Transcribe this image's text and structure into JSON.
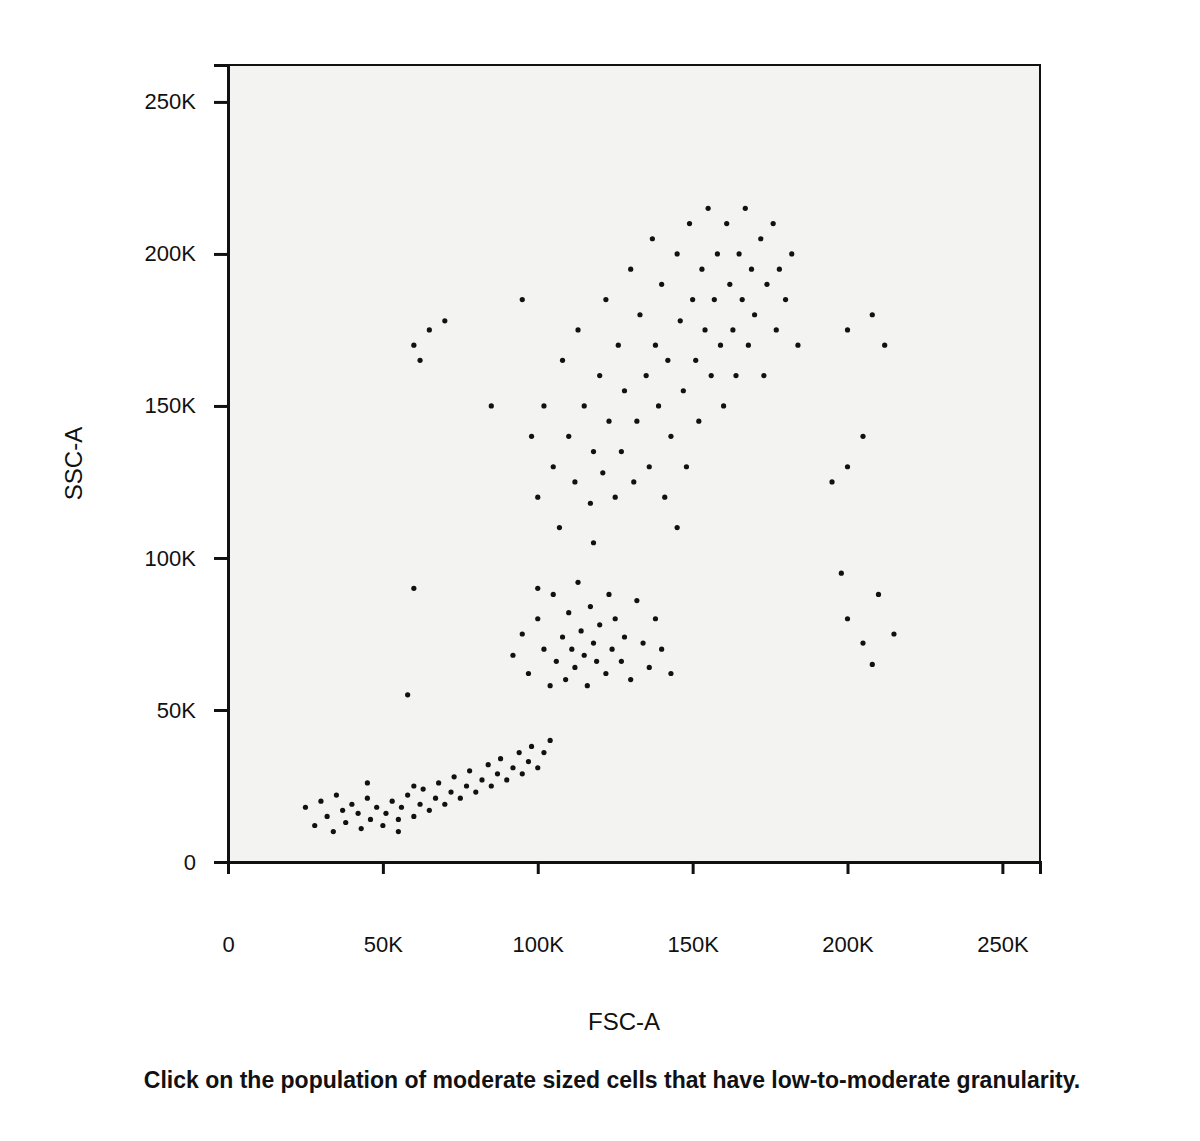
{
  "chart_data": {
    "type": "scatter",
    "x_label": "FSC-A",
    "y_label": "SSC-A",
    "annotations": [
      "Click on the population of moderate sized cells that have low-to-moderate granularity."
    ],
    "color": "#111111",
    "marker": "circle",
    "grid": false,
    "xlim": [
      0,
      262144
    ],
    "ylim": [
      0,
      262144
    ],
    "xticks": [
      0,
      {
        "value": 50000,
        "label": "50K"
      },
      {
        "value": 100000,
        "label": "100K"
      },
      {
        "value": 150000,
        "label": "150K"
      },
      {
        "value": 200000,
        "label": "200K"
      },
      {
        "value": 250000,
        "label": "250K"
      }
    ],
    "yticks": [
      0,
      {
        "value": 50000,
        "label": "50K"
      },
      {
        "value": 100000,
        "label": "100K"
      },
      {
        "value": 150000,
        "label": "150K"
      },
      {
        "value": 200000,
        "label": "200K"
      },
      {
        "value": 250000,
        "label": "250K"
      }
    ],
    "x": [
      25000,
      28000,
      30000,
      32000,
      34000,
      35000,
      37000,
      38000,
      40000,
      42000,
      43000,
      45000,
      46000,
      48000,
      50000,
      51000,
      53000,
      55000,
      56000,
      58000,
      60000,
      62000,
      63000,
      65000,
      67000,
      68000,
      70000,
      72000,
      73000,
      75000,
      77000,
      78000,
      80000,
      82000,
      84000,
      85000,
      87000,
      88000,
      90000,
      92000,
      94000,
      95000,
      97000,
      98000,
      100000,
      102000,
      104000,
      60000,
      45000,
      55000,
      92000,
      95000,
      97000,
      100000,
      102000,
      104000,
      105000,
      106000,
      108000,
      109000,
      110000,
      111000,
      112000,
      113000,
      114000,
      115000,
      116000,
      117000,
      118000,
      119000,
      120000,
      122000,
      123000,
      124000,
      125000,
      127000,
      128000,
      130000,
      132000,
      134000,
      136000,
      138000,
      140000,
      143000,
      100000,
      98000,
      100000,
      102000,
      105000,
      107000,
      108000,
      110000,
      112000,
      113000,
      115000,
      117000,
      118000,
      120000,
      121000,
      122000,
      123000,
      125000,
      126000,
      127000,
      128000,
      130000,
      131000,
      132000,
      133000,
      135000,
      136000,
      137000,
      138000,
      139000,
      140000,
      141000,
      142000,
      143000,
      145000,
      146000,
      147000,
      148000,
      149000,
      150000,
      151000,
      152000,
      153000,
      154000,
      155000,
      156000,
      157000,
      158000,
      159000,
      160000,
      161000,
      162000,
      163000,
      164000,
      165000,
      166000,
      167000,
      168000,
      169000,
      170000,
      172000,
      173000,
      174000,
      176000,
      177000,
      178000,
      180000,
      182000,
      184000,
      118000,
      145000,
      200000,
      205000,
      210000,
      198000,
      215000,
      208000,
      200000,
      205000,
      195000,
      200000,
      208000,
      212000,
      65000,
      60000,
      70000,
      62000,
      58000,
      60000,
      95000,
      85000
    ],
    "values": [
      18000,
      12000,
      20000,
      15000,
      10000,
      22000,
      17000,
      13000,
      19000,
      16000,
      11000,
      21000,
      14000,
      18000,
      12000,
      16000,
      20000,
      14000,
      18000,
      22000,
      15000,
      19000,
      24000,
      17000,
      21000,
      26000,
      19000,
      23000,
      28000,
      21000,
      25000,
      30000,
      23000,
      27000,
      32000,
      25000,
      29000,
      34000,
      27000,
      31000,
      36000,
      29000,
      33000,
      38000,
      31000,
      36000,
      40000,
      25000,
      26000,
      10000,
      68000,
      75000,
      62000,
      80000,
      70000,
      58000,
      88000,
      66000,
      74000,
      60000,
      82000,
      70000,
      64000,
      92000,
      76000,
      68000,
      58000,
      84000,
      72000,
      66000,
      78000,
      62000,
      88000,
      70000,
      80000,
      66000,
      74000,
      60000,
      86000,
      72000,
      64000,
      80000,
      70000,
      62000,
      90000,
      140000,
      120000,
      150000,
      130000,
      110000,
      165000,
      140000,
      125000,
      175000,
      150000,
      118000,
      135000,
      160000,
      128000,
      185000,
      145000,
      120000,
      170000,
      135000,
      155000,
      195000,
      125000,
      145000,
      180000,
      160000,
      130000,
      205000,
      170000,
      150000,
      190000,
      120000,
      165000,
      140000,
      200000,
      178000,
      155000,
      130000,
      210000,
      185000,
      165000,
      145000,
      195000,
      175000,
      215000,
      160000,
      185000,
      200000,
      170000,
      150000,
      210000,
      190000,
      175000,
      160000,
      200000,
      185000,
      215000,
      170000,
      195000,
      180000,
      205000,
      160000,
      190000,
      210000,
      175000,
      195000,
      185000,
      200000,
      170000,
      105000,
      110000,
      80000,
      72000,
      88000,
      95000,
      75000,
      65000,
      130000,
      140000,
      125000,
      175000,
      180000,
      170000,
      175000,
      170000,
      178000,
      165000,
      55000,
      90000,
      185000,
      150000
    ]
  }
}
